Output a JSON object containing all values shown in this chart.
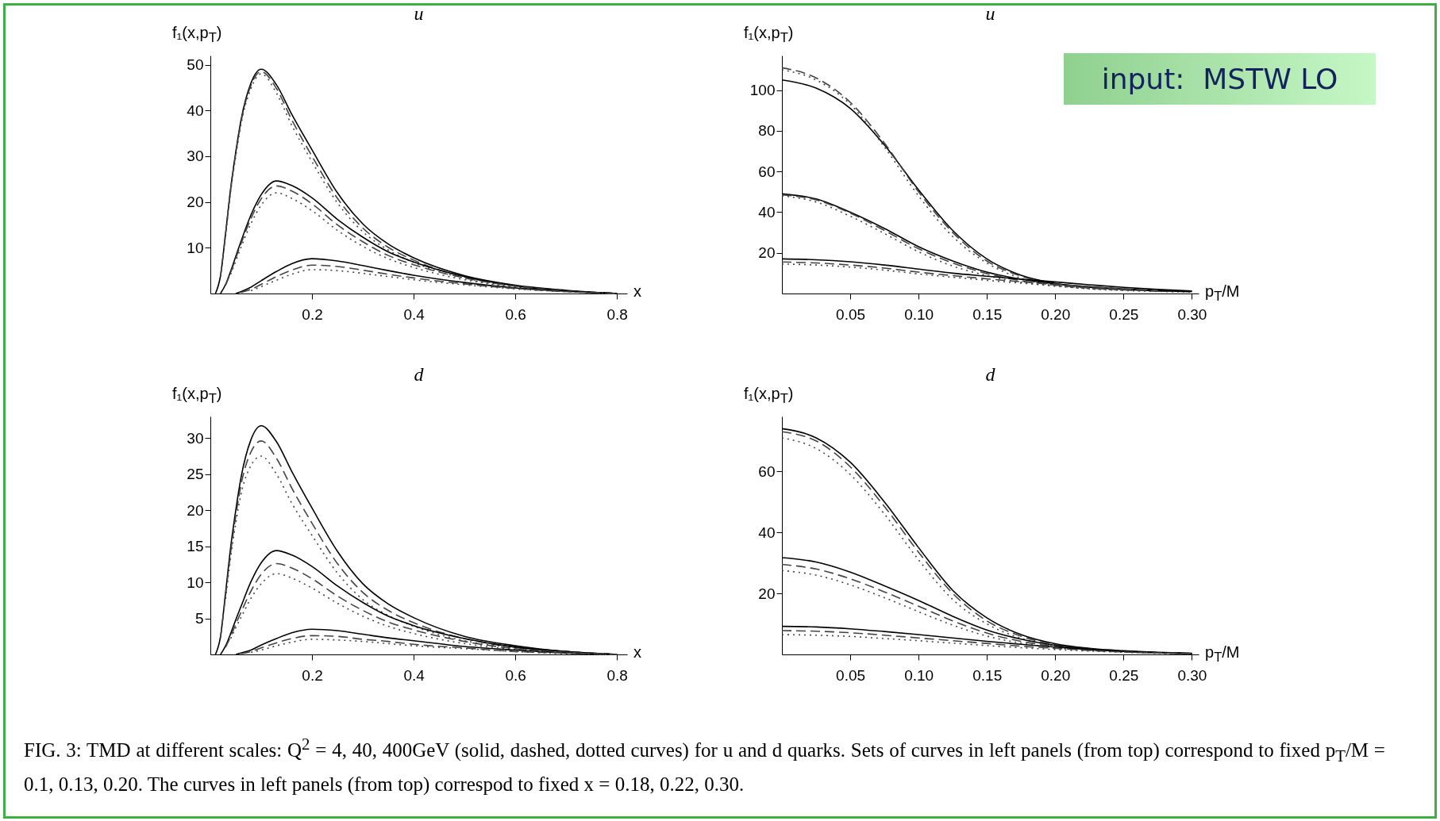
{
  "chart_data": [
    {
      "type": "line",
      "title": "u",
      "xlabel": "x",
      "ylabel": "f₁(x,p$_{T}$)",
      "x": [
        0.01,
        0.02,
        0.03,
        0.04,
        0.05,
        0.06,
        0.08,
        0.1,
        0.13,
        0.16,
        0.2,
        0.25,
        0.3,
        0.35,
        0.4,
        0.5,
        0.6,
        0.7,
        0.8
      ],
      "xlim": [
        0,
        0.82
      ],
      "ylim": [
        0,
        52
      ],
      "xticks": [
        0.2,
        0.4,
        0.6,
        0.8
      ],
      "yticks": [
        10,
        20,
        30,
        40,
        50
      ],
      "grid": false,
      "legend": false,
      "marker": "none",
      "series": [
        {
          "color": "#000000",
          "line_style": "solid",
          "values": [
            0,
            3.9,
            13.2,
            23,
            30.9,
            37.7,
            46,
            49,
            45.6,
            39.2,
            31.4,
            22,
            15.2,
            10.8,
            7.8,
            3.9,
            1.8,
            0.7,
            0
          ]
        },
        {
          "color": "#444444",
          "line_style": "dashed",
          "values": [
            null,
            3.7,
            13,
            22.8,
            30.6,
            37.3,
            45.5,
            48.5,
            44.8,
            38,
            30,
            20.8,
            14.3,
            10.1,
            7.3,
            3.6,
            1.7,
            0.6,
            0
          ]
        },
        {
          "color": "#444444",
          "line_style": "dotted",
          "values": [
            null,
            null,
            12.5,
            22.3,
            30,
            36.8,
            44.8,
            48,
            43.8,
            36.8,
            28.8,
            19.8,
            13.5,
            9.5,
            6.8,
            3.3,
            1.5,
            0.5,
            0
          ]
        },
        {
          "color": "#000000",
          "line_style": "solid",
          "values": [
            null,
            0,
            2,
            4.9,
            8.1,
            11.3,
            17.2,
            21.6,
            24.6,
            23.6,
            20.9,
            16.2,
            12.3,
            9.1,
            6.9,
            3.7,
            1.7,
            0.6,
            0
          ]
        },
        {
          "color": "#444444",
          "line_style": "dashed",
          "values": [
            null,
            null,
            1.8,
            4.6,
            7.7,
            10.8,
            16.4,
            20.7,
            23.5,
            22.4,
            19.6,
            15,
            11.3,
            8.3,
            6.3,
            3.4,
            1.6,
            0.6,
            0
          ]
        },
        {
          "color": "#444444",
          "line_style": "dotted",
          "values": [
            null,
            null,
            null,
            4.2,
            7.1,
            10,
            15.3,
            19.3,
            22,
            20.8,
            18.1,
            13.8,
            10.3,
            7.6,
            5.7,
            3,
            1.4,
            0.5,
            0
          ]
        },
        {
          "color": "#000000",
          "line_style": "solid",
          "values": [
            null,
            null,
            null,
            null,
            0,
            0.4,
            1.4,
            2.8,
            4.8,
            6.5,
            7.6,
            7.1,
            6.1,
            5,
            4,
            2.4,
            1.2,
            0.5,
            0
          ]
        },
        {
          "color": "#444444",
          "line_style": "dashed",
          "values": [
            null,
            null,
            null,
            null,
            null,
            0.2,
            0.9,
            2,
            3.7,
            5.1,
            6.2,
            5.9,
            5.1,
            4.2,
            3.4,
            2.1,
            1.1,
            0.4,
            0
          ]
        },
        {
          "color": "#444444",
          "line_style": "dotted",
          "values": [
            null,
            null,
            null,
            null,
            null,
            null,
            0.6,
            1.5,
            2.9,
            4.2,
            5.2,
            5,
            4.4,
            3.7,
            3,
            1.9,
            1,
            0.4,
            0
          ]
        }
      ]
    },
    {
      "type": "line",
      "title": "u",
      "xlabel": "p$_{T}$/M",
      "ylabel": "f₁(x,p$_{T}$)",
      "annotations": [
        "input:  MSTW LO"
      ],
      "x": [
        0,
        0.025,
        0.05,
        0.075,
        0.1,
        0.125,
        0.15,
        0.175,
        0.2,
        0.225,
        0.25,
        0.275,
        0.3
      ],
      "xlim": [
        0,
        0.305
      ],
      "ylim": [
        0,
        117
      ],
      "xticks": [
        0.05,
        {
          "value": 0.1,
          "label": "0.10"
        },
        0.15,
        {
          "value": 0.2,
          "label": "0.20"
        },
        0.25,
        {
          "value": 0.3,
          "label": "0.30"
        }
      ],
      "yticks": [
        20,
        40,
        60,
        80,
        100
      ],
      "grid": false,
      "legend": false,
      "marker": "none",
      "series": [
        {
          "color": "#000000",
          "line_style": "solid",
          "values": [
            105,
            101,
            91,
            73,
            51,
            31,
            17,
            9,
            5,
            3,
            2,
            1.3,
            1
          ]
        },
        {
          "color": "#444444",
          "line_style": "dashed",
          "values": [
            111,
            106,
            94,
            74,
            50,
            30,
            16,
            8.5,
            4.5,
            2.7,
            1.8,
            1.2,
            0.9
          ]
        },
        {
          "color": "#444444",
          "line_style": "dotted",
          "values": [
            110,
            105,
            93,
            72,
            48,
            28,
            15,
            7.5,
            4,
            2.3,
            1.5,
            1,
            0.7
          ]
        },
        {
          "color": "#000000",
          "line_style": "solid",
          "values": [
            49,
            46.5,
            40,
            32,
            23,
            16,
            10.5,
            7,
            4.8,
            3.3,
            2.2,
            1.5,
            1
          ]
        },
        {
          "color": "#444444",
          "line_style": "dashed",
          "values": [
            48.5,
            46,
            39.5,
            31,
            22,
            15,
            9.8,
            6.3,
            4.2,
            2.8,
            1.9,
            1.3,
            null
          ]
        },
        {
          "color": "#444444",
          "line_style": "dotted",
          "values": [
            48,
            45,
            38,
            29.5,
            20.5,
            13.5,
            8.8,
            5.5,
            3.6,
            2.4,
            1.6,
            null,
            null
          ]
        },
        {
          "color": "#000000",
          "line_style": "solid",
          "values": [
            17,
            16.6,
            15.6,
            14,
            12,
            10,
            8.5,
            7,
            5.7,
            4.3,
            3,
            2,
            1.2
          ]
        },
        {
          "color": "#444444",
          "line_style": "dashed",
          "values": [
            15.5,
            15,
            14,
            12.5,
            10.5,
            8.8,
            7.2,
            5.8,
            4.6,
            3.4,
            2.4,
            1.6,
            null
          ]
        },
        {
          "color": "#444444",
          "line_style": "dotted",
          "values": [
            14.5,
            14,
            13,
            11.5,
            9.6,
            8,
            6.5,
            5.1,
            4,
            3,
            2,
            null,
            null
          ]
        }
      ]
    },
    {
      "type": "line",
      "title": "d",
      "xlabel": "x",
      "ylabel": "f₁(x,p$_{T}$)",
      "x": [
        0.01,
        0.02,
        0.03,
        0.04,
        0.05,
        0.06,
        0.08,
        0.1,
        0.13,
        0.16,
        0.2,
        0.25,
        0.3,
        0.35,
        0.4,
        0.5,
        0.6,
        0.7,
        0.8
      ],
      "xlim": [
        0,
        0.82
      ],
      "ylim": [
        0,
        33
      ],
      "xticks": [
        0.2,
        0.4,
        0.6,
        0.8
      ],
      "yticks": [
        5,
        10,
        15,
        20,
        25,
        30
      ],
      "grid": false,
      "legend": false,
      "marker": "none",
      "series": [
        {
          "color": "#000000",
          "line_style": "solid",
          "values": [
            0,
            2.5,
            8.6,
            14.9,
            20,
            24.4,
            29.8,
            31.7,
            29.5,
            25.4,
            20.3,
            14.3,
            9.8,
            7,
            5.1,
            2.5,
            1.2,
            0.4,
            0
          ]
        },
        {
          "color": "#444444",
          "line_style": "dashed",
          "values": [
            null,
            2.3,
            8.2,
            14.2,
            19.2,
            23.4,
            28.1,
            29.6,
            27.2,
            23.1,
            18.2,
            12.6,
            8.6,
            6.1,
            4.4,
            2.2,
            1,
            0.4,
            0
          ]
        },
        {
          "color": "#444444",
          "line_style": "dotted",
          "values": [
            null,
            null,
            7.7,
            13.5,
            18.2,
            22.1,
            26.2,
            27.5,
            25,
            21,
            16.5,
            11.3,
            7.6,
            5.4,
            3.9,
            1.9,
            0.9,
            0.3,
            0
          ]
        },
        {
          "color": "#000000",
          "line_style": "solid",
          "values": [
            null,
            0,
            1.2,
            2.9,
            4.8,
            6.6,
            10.1,
            12.7,
            14.4,
            13.8,
            12.2,
            9.5,
            7.2,
            5.3,
            4,
            2.2,
            1,
            0.4,
            0
          ]
        },
        {
          "color": "#444444",
          "line_style": "dashed",
          "values": [
            null,
            null,
            1,
            2.5,
            4.2,
            5.8,
            8.8,
            11.1,
            12.6,
            12,
            10.5,
            8.1,
            6.1,
            4.5,
            3.4,
            1.8,
            0.8,
            0.3,
            0
          ]
        },
        {
          "color": "#444444",
          "line_style": "dotted",
          "values": [
            null,
            null,
            null,
            2.2,
            3.7,
            5.1,
            7.8,
            9.8,
            11.2,
            10.6,
            9.2,
            7.1,
            5.3,
            3.9,
            2.9,
            1.5,
            0.7,
            0.3,
            0
          ]
        },
        {
          "color": "#000000",
          "line_style": "solid",
          "values": [
            null,
            null,
            null,
            null,
            0,
            0.2,
            0.6,
            1.3,
            2.2,
            3,
            3.5,
            3.3,
            2.8,
            2.3,
            1.9,
            1.1,
            0.6,
            0.2,
            0
          ]
        },
        {
          "color": "#444444",
          "line_style": "dashed",
          "values": [
            null,
            null,
            null,
            null,
            null,
            0.1,
            0.4,
            0.9,
            1.6,
            2.2,
            2.6,
            2.5,
            2.1,
            1.8,
            1.4,
            0.9,
            0.4,
            0.2,
            0
          ]
        },
        {
          "color": "#444444",
          "line_style": "dotted",
          "values": [
            null,
            null,
            null,
            null,
            null,
            null,
            0.3,
            0.6,
            1.2,
            1.7,
            2.1,
            2,
            1.8,
            1.5,
            1.2,
            0.8,
            0.4,
            0.1,
            0
          ]
        }
      ]
    },
    {
      "type": "line",
      "title": "d",
      "xlabel": "p$_{T}$/M",
      "ylabel": "f₁(x,p$_{T}$)",
      "annotations": [
        "FIG. 3: TMD at different scales: Q$^{2}$ = 4, 40, 400GeV (solid, dashed, dotted curves) for u and d quarks. Sets of curves in left panels (from top) correspond to fixed p$_{T}$/M = 0.1, 0.13, 0.20. The curves in left panels (from top) correspod to fixed x = 0.18, 0.22, 0.30."
      ],
      "x": [
        0,
        0.025,
        0.05,
        0.075,
        0.1,
        0.125,
        0.15,
        0.175,
        0.2,
        0.225,
        0.25,
        0.275,
        0.3
      ],
      "xlim": [
        0,
        0.305
      ],
      "ylim": [
        0,
        78
      ],
      "xticks": [
        0.05,
        {
          "value": 0.1,
          "label": "0.10"
        },
        0.15,
        {
          "value": 0.2,
          "label": "0.20"
        },
        0.25,
        {
          "value": 0.3,
          "label": "0.30"
        }
      ],
      "yticks": [
        20,
        40,
        60
      ],
      "grid": false,
      "legend": false,
      "marker": "none",
      "series": [
        {
          "color": "#000000",
          "line_style": "solid",
          "values": [
            74,
            71,
            63,
            50,
            35,
            21,
            12,
            6.5,
            3.5,
            2,
            1.2,
            0.7,
            0.4
          ]
        },
        {
          "color": "#444444",
          "line_style": "dashed",
          "values": [
            73,
            70,
            61.5,
            48.5,
            33.5,
            20,
            11,
            6,
            3.2,
            1.8,
            1.1,
            0.6,
            0.3
          ]
        },
        {
          "color": "#444444",
          "line_style": "dotted",
          "values": [
            71,
            67.5,
            59,
            46,
            31,
            18,
            10,
            5.3,
            2.8,
            1.6,
            0.9,
            0.5,
            0.3
          ]
        },
        {
          "color": "#000000",
          "line_style": "solid",
          "values": [
            31.7,
            30.3,
            27,
            22.5,
            17.7,
            12.5,
            8,
            5,
            3,
            1.8,
            1,
            0.6,
            0.3
          ]
        },
        {
          "color": "#444444",
          "line_style": "dashed",
          "values": [
            29.5,
            28,
            24.8,
            20.5,
            15.8,
            11,
            7,
            4.3,
            2.6,
            1.5,
            0.9,
            0.5,
            0.3
          ]
        },
        {
          "color": "#444444",
          "line_style": "dotted",
          "values": [
            27.5,
            26,
            22.8,
            18.6,
            14,
            9.6,
            6,
            3.7,
            2.2,
            1.3,
            0.8,
            0.4,
            0.2
          ]
        },
        {
          "color": "#000000",
          "line_style": "solid",
          "values": [
            9.2,
            9,
            8.4,
            7.5,
            6.5,
            5.4,
            4.3,
            3.3,
            2.4,
            1.6,
            1,
            0.6,
            0.3
          ]
        },
        {
          "color": "#444444",
          "line_style": "dashed",
          "values": [
            7.8,
            7.6,
            7.1,
            6.3,
            5.4,
            4.5,
            3.6,
            2.7,
            2,
            1.3,
            0.8,
            0.5,
            0.3
          ]
        },
        {
          "color": "#444444",
          "line_style": "dotted",
          "values": [
            6.5,
            6.3,
            5.9,
            5.2,
            4.5,
            3.7,
            2.9,
            2.2,
            1.6,
            1.1,
            0.7,
            0.4,
            0.2
          ]
        }
      ]
    }
  ]
}
